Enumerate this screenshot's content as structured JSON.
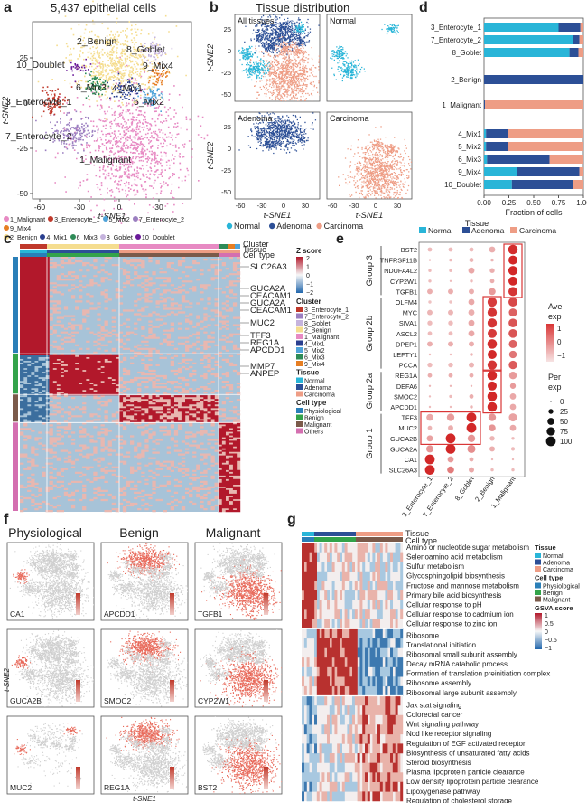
{
  "panels": {
    "a": "a",
    "b": "b",
    "c": "c",
    "d": "d",
    "e": "e",
    "f": "f",
    "g": "g"
  },
  "a": {
    "title": "5,437 epithelial cells",
    "xlabel": "t-SNE1",
    "ylabel": "t-SNE2",
    "xticks": [
      "-60",
      "-30",
      "0",
      "30"
    ],
    "yticks": [
      "25",
      "0",
      "-25",
      "-50"
    ],
    "clusters": [
      {
        "label": "1_Malignant",
        "color": "#e78ac3"
      },
      {
        "label": "2_Benign",
        "color": "#f5dd8f"
      },
      {
        "label": "3_Enterocyte_1",
        "color": "#c0392b"
      },
      {
        "label": "4_Mix1",
        "color": "#2a3f8f"
      },
      {
        "label": "5_Mix2",
        "color": "#4fa3d9"
      },
      {
        "label": "6_Mix3",
        "color": "#2e8b57"
      },
      {
        "label": "7_Enterocyte_2",
        "color": "#9b7fc0"
      },
      {
        "label": "8_Goblet",
        "color": "#c5b3dd"
      },
      {
        "label": "9_Mix4",
        "color": "#e67e22"
      },
      {
        "label": "10_Doublet",
        "color": "#6a1b9a"
      }
    ]
  },
  "b": {
    "title": "Tissue distribution",
    "subplots": [
      "All tissues",
      "Normal",
      "Adenoma",
      "Carcinoma"
    ],
    "xlabel": "t-SNE1",
    "ylabel": "t-SNE2",
    "xticks": [
      "-60",
      "-30",
      "0",
      "30"
    ],
    "yticks": [
      "25",
      "0",
      "-25",
      "-50"
    ],
    "legend": [
      {
        "label": "Normal",
        "color": "#29b5d8"
      },
      {
        "label": "Adenoma",
        "color": "#2c4f96"
      },
      {
        "label": "Carcinoma",
        "color": "#ee9d85"
      }
    ]
  },
  "c": {
    "track_labels": [
      "Cluster",
      "Tissue",
      "Cell type"
    ],
    "genes": [
      "SLC26A3",
      "GUCA2A",
      "CEACAM1",
      "GUCA2A",
      "CEACAM1",
      "MUC2",
      "TFF3",
      "REG1A",
      "APCDD1",
      "MMP7",
      "ANPEP"
    ],
    "zscore_title": "Z score",
    "zscore_ticks": [
      "2",
      "1",
      "0",
      "−1",
      "−2"
    ],
    "cluster_title": "Cluster",
    "cluster_items": [
      {
        "label": "3_Enterocyte_1",
        "color": "#c0392b"
      },
      {
        "label": "7_Enterocyte_2",
        "color": "#9b7fc0"
      },
      {
        "label": "8_Goblet",
        "color": "#c5b3dd"
      },
      {
        "label": "2_Benign",
        "color": "#f5dd8f"
      },
      {
        "label": "1_Malignant",
        "color": "#e78ac3"
      },
      {
        "label": "4_Mix1",
        "color": "#2a3f8f"
      },
      {
        "label": "5_Mix2",
        "color": "#4fa3d9"
      },
      {
        "label": "6_Mix3",
        "color": "#2e8b57"
      },
      {
        "label": "9_Mix4",
        "color": "#e67e22"
      }
    ],
    "tissue_title": "Tissue",
    "tissue_items": [
      {
        "label": "Normal",
        "color": "#29b5d8"
      },
      {
        "label": "Adenoma",
        "color": "#2c4f96"
      },
      {
        "label": "Carcinoma",
        "color": "#ee9d85"
      }
    ],
    "celltype_title": "Cell type",
    "celltype_items": [
      {
        "label": "Physiological",
        "color": "#2a7fb8"
      },
      {
        "label": "Benign",
        "color": "#33a34a"
      },
      {
        "label": "Malignant",
        "color": "#7b5a4a"
      },
      {
        "label": "Others",
        "color": "#d46fb0"
      }
    ]
  },
  "d": {
    "xlabel": "Fraction of cells",
    "xticks": [
      "0.00",
      "0.25",
      "0.50",
      "0.75",
      "1.00"
    ],
    "legend_title": "Tissue",
    "legend": [
      {
        "label": "Normal",
        "color": "#29b5d8"
      },
      {
        "label": "Adenoma",
        "color": "#2c4f96"
      },
      {
        "label": "Carcinoma",
        "color": "#ee9d85"
      }
    ]
  },
  "chart_data": [
    {
      "type": "bar",
      "orientation": "horizontal stacked",
      "xlabel": "Fraction of cells",
      "xlim": [
        0,
        1
      ],
      "categories": [
        "3_Enterocyte_1",
        "7_Enterocyte_2",
        "8_Goblet",
        "2_Benign",
        "1_Malignant",
        "4_Mix1",
        "5_Mix2",
        "6_Mix3",
        "9_Mix4",
        "10_Doublet"
      ],
      "series": [
        {
          "name": "Normal",
          "values": [
            0.75,
            0.9,
            0.86,
            0.0,
            0.0,
            0.02,
            0.02,
            0.03,
            0.33,
            0.28
          ]
        },
        {
          "name": "Adenoma",
          "values": [
            0.22,
            0.06,
            0.09,
            1.0,
            0.01,
            0.22,
            0.22,
            0.63,
            0.63,
            0.62
          ]
        },
        {
          "name": "Carcinoma",
          "values": [
            0.03,
            0.04,
            0.05,
            0.0,
            0.99,
            0.76,
            0.76,
            0.34,
            0.04,
            0.1
          ]
        }
      ]
    },
    {
      "type": "scatter",
      "title": "dot plot",
      "genes": [
        "BST2",
        "TNFRSF11B",
        "NDUFA4L2",
        "CYP2W1",
        "TGFB1",
        "OLFM4",
        "MYC",
        "SIVA1",
        "ASCL2",
        "DPEP1",
        "LEFTY1",
        "PCCA",
        "REG1A",
        "DEFA6",
        "SMOC2",
        "APCDD1",
        "TFF3",
        "MUC2",
        "GUCA2B",
        "GUCA2A",
        "CA1",
        "SLC26A3"
      ],
      "groups": [
        "3_Enterocyte_1",
        "7_Enterocyte_2",
        "8_Goblet",
        "2_Benign",
        "1_Malignant"
      ],
      "gene_groups": [
        {
          "name": "Group 3",
          "count": 5
        },
        {
          "name": "Group 2b",
          "count": 7
        },
        {
          "name": "Group 2a",
          "count": 4
        },
        {
          "name": "Group 1",
          "count": 6
        }
      ],
      "ave_exp": [
        [
          -0.8,
          -0.8,
          -0.8,
          -0.6,
          1.4
        ],
        [
          -0.8,
          -0.8,
          -0.7,
          -0.7,
          1.5
        ],
        [
          -0.8,
          -0.8,
          -0.5,
          -0.6,
          1.5
        ],
        [
          -0.8,
          -0.8,
          -0.8,
          -0.6,
          1.5
        ],
        [
          -0.6,
          -0.6,
          -0.6,
          -0.3,
          1.3
        ],
        [
          -0.9,
          -0.9,
          -0.5,
          1.2,
          1.0
        ],
        [
          -0.7,
          -0.7,
          -0.6,
          1.3,
          0.6
        ],
        [
          -0.8,
          -0.8,
          -0.5,
          1.3,
          0.8
        ],
        [
          -0.8,
          -0.8,
          -0.5,
          1.2,
          0.8
        ],
        [
          -0.6,
          -0.6,
          -0.6,
          1.4,
          0.6
        ],
        [
          -0.8,
          -0.8,
          -0.7,
          1.5,
          0.3
        ],
        [
          -0.8,
          -0.8,
          -0.7,
          1.3,
          0.7
        ],
        [
          -0.6,
          -0.6,
          -0.6,
          1.5,
          -0.3
        ],
        [
          -0.7,
          -0.7,
          -0.7,
          1.5,
          -0.3
        ],
        [
          -0.8,
          -0.8,
          -0.6,
          1.5,
          -0.5
        ],
        [
          -0.8,
          -0.8,
          -0.7,
          1.5,
          -0.5
        ],
        [
          -0.5,
          -0.3,
          1.5,
          -0.2,
          -0.4
        ],
        [
          -0.7,
          -0.6,
          1.5,
          -0.2,
          -0.5
        ],
        [
          -0.4,
          1.5,
          -0.2,
          -0.7,
          -0.8
        ],
        [
          -0.2,
          1.5,
          -0.1,
          -0.6,
          -0.8
        ],
        [
          1.5,
          -0.3,
          -0.6,
          -0.8,
          -0.8
        ],
        [
          1.5,
          0.2,
          -0.5,
          -0.8,
          -0.8
        ]
      ],
      "per_exp": [
        [
          20,
          20,
          20,
          40,
          95
        ],
        [
          5,
          10,
          20,
          10,
          85
        ],
        [
          10,
          10,
          40,
          25,
          90
        ],
        [
          10,
          5,
          10,
          20,
          85
        ],
        [
          30,
          30,
          30,
          50,
          85
        ],
        [
          10,
          10,
          40,
          90,
          85
        ],
        [
          30,
          30,
          40,
          90,
          70
        ],
        [
          25,
          25,
          40,
          90,
          80
        ],
        [
          20,
          20,
          40,
          85,
          80
        ],
        [
          30,
          30,
          30,
          95,
          70
        ],
        [
          5,
          5,
          10,
          85,
          60
        ],
        [
          25,
          25,
          30,
          90,
          75
        ],
        [
          20,
          20,
          20,
          95,
          60
        ],
        [
          5,
          5,
          5,
          85,
          35
        ],
        [
          5,
          10,
          20,
          95,
          40
        ],
        [
          5,
          5,
          10,
          95,
          40
        ],
        [
          50,
          60,
          100,
          60,
          70
        ],
        [
          20,
          30,
          100,
          50,
          40
        ],
        [
          40,
          100,
          60,
          25,
          10
        ],
        [
          55,
          100,
          70,
          30,
          15
        ],
        [
          100,
          40,
          20,
          5,
          5
        ],
        [
          100,
          50,
          30,
          10,
          10
        ]
      ]
    }
  ],
  "e": {
    "ave_title": "Ave\nexp",
    "ave_ticks": [
      "1",
      "0",
      "−1"
    ],
    "per_title": "Per\nexp",
    "per_ticks": [
      "0",
      "25",
      "50",
      "75",
      "100"
    ]
  },
  "f": {
    "columns": [
      "Physiological",
      "Benign",
      "Malignant"
    ],
    "genes": [
      [
        "CA1",
        "APCDD1",
        "TGFB1"
      ],
      [
        "GUCA2B",
        "SMOC2",
        "CYP2W1"
      ],
      [
        "MUC2",
        "REG1A",
        "BST2"
      ]
    ],
    "xlabel": "t-SNE1",
    "ylabel": "t-SNE2"
  },
  "g": {
    "track_labels": [
      "Tissue",
      "Cell type"
    ],
    "pathways": [
      "Amino or nucleotide sugar metabolism",
      "Selenoamino acid metabolism",
      "Sulfur metabolism",
      "Glycosphingolipid biosynthesis",
      "Fructose and mannose metabolism",
      "Primary bile acid biosynthesis",
      "Cellular response to pH",
      "Cellular response to cadmium ion",
      "Cellular response to zinc ion",
      "Ribosome",
      "Translational initiation",
      "Ribosomal small subunit assembly",
      "Decay mRNA catabolic process",
      "Formation of translation preinitiation complex",
      "Ribosome assembly",
      "Ribosomal large subunit assembly",
      "Jak stat signaling",
      "Colorectal cancer",
      "Wnt signaling pathway",
      "Nod like receptor signaling",
      "Regulation of EGF activated receptor",
      "Biosynthesis of unsaturated fatty acids",
      "Steroid biosynthesis",
      "Plasma lipoprotein particle clearance",
      "Low density lipoprotein particle clearance",
      "Lipoxygenase pathway",
      "Regulation of cholesterol storage"
    ],
    "tissue_title": "Tissue",
    "tissue_items": [
      {
        "label": "Normal",
        "color": "#29b5d8"
      },
      {
        "label": "Adenoma",
        "color": "#2c4f96"
      },
      {
        "label": "Carcinoma",
        "color": "#ee9d85"
      }
    ],
    "celltype_title": "Cell type",
    "celltype_items": [
      {
        "label": "Physiological",
        "color": "#2a7fb8"
      },
      {
        "label": "Benign",
        "color": "#33a34a"
      },
      {
        "label": "Malignant",
        "color": "#7b5a4a"
      }
    ],
    "gsva_title": "GSVA score",
    "gsva_ticks": [
      "1",
      "0.5",
      "0",
      "−0.5",
      "−1"
    ]
  }
}
